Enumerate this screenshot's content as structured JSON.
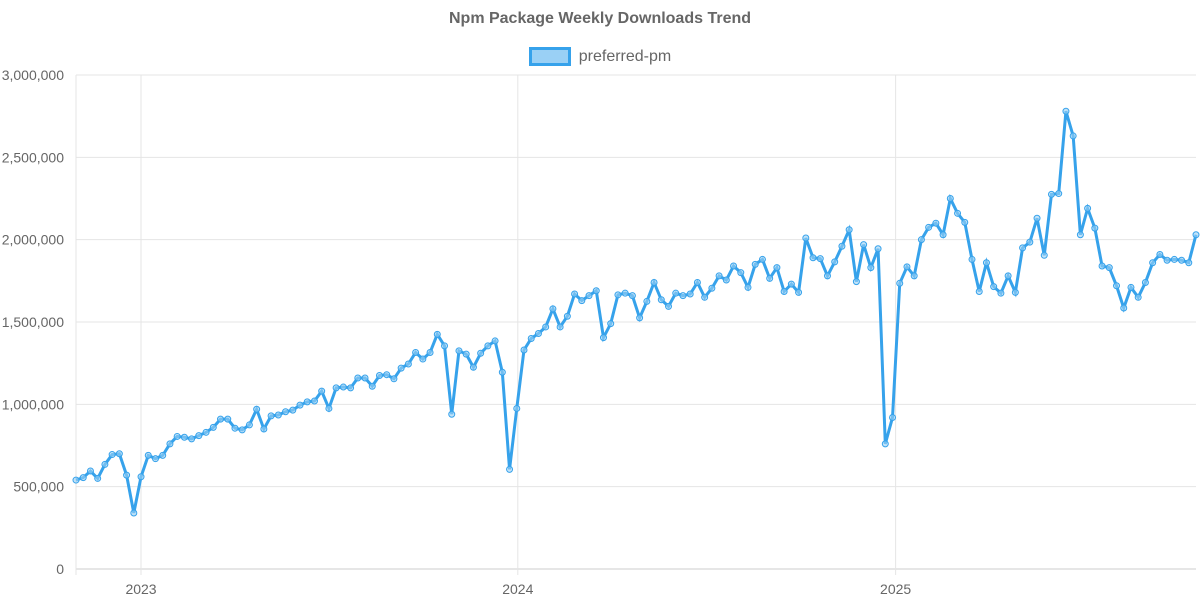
{
  "chart_data": {
    "type": "line",
    "title": "Npm Package Weekly Downloads Trend",
    "xlabel": "",
    "ylabel": "",
    "ylim": [
      0,
      3000000
    ],
    "y_ticks": [
      "0",
      "500,000",
      "1,000,000",
      "1,500,000",
      "2,000,000",
      "2,500,000",
      "3,000,000"
    ],
    "x_ticks": [
      "2023",
      "2024",
      "2025"
    ],
    "grid": true,
    "legend_position": "top",
    "colors": {
      "line": "#36a2eb",
      "fill": "#9ad0f5"
    },
    "x": [
      "2022-10-30",
      "2022-11-06",
      "2022-11-13",
      "2022-11-20",
      "2022-11-27",
      "2022-12-04",
      "2022-12-11",
      "2022-12-18",
      "2022-12-25",
      "2023-01-01",
      "2023-01-08",
      "2023-01-15",
      "2023-01-22",
      "2023-01-29",
      "2023-02-05",
      "2023-02-12",
      "2023-02-19",
      "2023-02-26",
      "2023-03-05",
      "2023-03-12",
      "2023-03-19",
      "2023-03-26",
      "2023-04-02",
      "2023-04-09",
      "2023-04-16",
      "2023-04-23",
      "2023-04-30",
      "2023-05-07",
      "2023-05-14",
      "2023-05-21",
      "2023-05-28",
      "2023-06-04",
      "2023-06-11",
      "2023-06-18",
      "2023-06-25",
      "2023-07-02",
      "2023-07-09",
      "2023-07-16",
      "2023-07-23",
      "2023-07-30",
      "2023-08-06",
      "2023-08-13",
      "2023-08-20",
      "2023-08-27",
      "2023-09-03",
      "2023-09-10",
      "2023-09-17",
      "2023-09-24",
      "2023-10-01",
      "2023-10-08",
      "2023-10-15",
      "2023-10-22",
      "2023-10-29",
      "2023-11-05",
      "2023-11-12",
      "2023-11-19",
      "2023-11-26",
      "2023-12-03",
      "2023-12-10",
      "2023-12-17",
      "2023-12-24",
      "2023-12-31",
      "2024-01-07",
      "2024-01-14",
      "2024-01-21",
      "2024-01-28",
      "2024-02-04",
      "2024-02-11",
      "2024-02-18",
      "2024-02-25",
      "2024-03-03",
      "2024-03-10",
      "2024-03-17",
      "2024-03-24",
      "2024-03-31",
      "2024-04-07",
      "2024-04-14",
      "2024-04-21",
      "2024-04-28",
      "2024-05-05",
      "2024-05-12",
      "2024-05-19",
      "2024-05-26",
      "2024-06-02",
      "2024-06-09",
      "2024-06-16",
      "2024-06-23",
      "2024-06-30",
      "2024-07-07",
      "2024-07-14",
      "2024-07-21",
      "2024-07-28",
      "2024-08-04",
      "2024-08-11",
      "2024-08-18",
      "2024-08-25",
      "2024-09-01",
      "2024-09-08",
      "2024-09-15",
      "2024-09-22",
      "2024-09-29",
      "2024-10-06",
      "2024-10-13",
      "2024-10-20",
      "2024-10-27",
      "2024-11-03",
      "2024-11-10",
      "2024-11-17",
      "2024-11-24",
      "2024-12-01",
      "2024-12-08",
      "2024-12-15",
      "2024-12-22",
      "2024-12-29",
      "2025-01-05",
      "2025-01-12",
      "2025-01-19",
      "2025-01-26",
      "2025-02-02",
      "2025-02-09",
      "2025-02-16",
      "2025-02-23",
      "2025-03-02",
      "2025-03-09",
      "2025-03-16",
      "2025-03-23",
      "2025-03-30",
      "2025-04-06",
      "2025-04-13",
      "2025-04-20",
      "2025-04-27",
      "2025-05-04",
      "2025-05-11",
      "2025-05-18",
      "2025-05-25",
      "2025-06-01",
      "2025-06-08",
      "2025-06-15",
      "2025-06-22",
      "2025-06-29",
      "2025-07-06",
      "2025-07-13",
      "2025-07-20",
      "2025-07-27",
      "2025-08-03",
      "2025-08-10",
      "2025-08-17",
      "2025-08-24",
      "2025-08-31",
      "2025-09-07",
      "2025-09-14",
      "2025-09-21",
      "2025-09-28",
      "2025-10-05",
      "2025-10-12",
      "2025-10-19"
    ],
    "series": [
      {
        "name": "preferred-pm",
        "values": [
          540000,
          555000,
          595000,
          550000,
          635000,
          695000,
          700000,
          570000,
          340000,
          560000,
          690000,
          670000,
          690000,
          760000,
          805000,
          800000,
          790000,
          810000,
          830000,
          860000,
          910000,
          910000,
          855000,
          845000,
          875000,
          970000,
          850000,
          930000,
          935000,
          955000,
          965000,
          995000,
          1015000,
          1020000,
          1080000,
          975000,
          1100000,
          1105000,
          1100000,
          1160000,
          1160000,
          1110000,
          1175000,
          1180000,
          1155000,
          1220000,
          1245000,
          1315000,
          1275000,
          1315000,
          1425000,
          1355000,
          940000,
          1325000,
          1305000,
          1225000,
          1310000,
          1355000,
          1385000,
          1195000,
          605000,
          975000,
          1330000,
          1400000,
          1430000,
          1470000,
          1580000,
          1470000,
          1535000,
          1670000,
          1630000,
          1660000,
          1690000,
          1405000,
          1490000,
          1665000,
          1675000,
          1660000,
          1525000,
          1625000,
          1740000,
          1635000,
          1595000,
          1675000,
          1660000,
          1670000,
          1740000,
          1650000,
          1705000,
          1780000,
          1755000,
          1840000,
          1800000,
          1710000,
          1850000,
          1880000,
          1765000,
          1830000,
          1685000,
          1730000,
          1680000,
          2010000,
          1890000,
          1885000,
          1780000,
          1865000,
          1960000,
          2060000,
          1745000,
          1970000,
          1830000,
          1945000,
          760000,
          920000,
          1735000,
          1835000,
          1780000,
          2000000,
          2075000,
          2100000,
          2030000,
          2250000,
          2160000,
          2105000,
          1880000,
          1685000,
          1860000,
          1715000,
          1675000,
          1780000,
          1680000,
          1950000,
          1985000,
          2130000,
          1905000,
          2275000,
          2280000,
          2780000,
          2630000,
          2030000,
          2190000,
          2070000,
          1840000,
          1830000,
          1720000,
          1585000,
          1710000,
          1650000,
          1740000,
          1860000,
          1910000,
          1875000,
          1880000,
          1875000,
          1860000,
          2030000
        ]
      }
    ]
  }
}
